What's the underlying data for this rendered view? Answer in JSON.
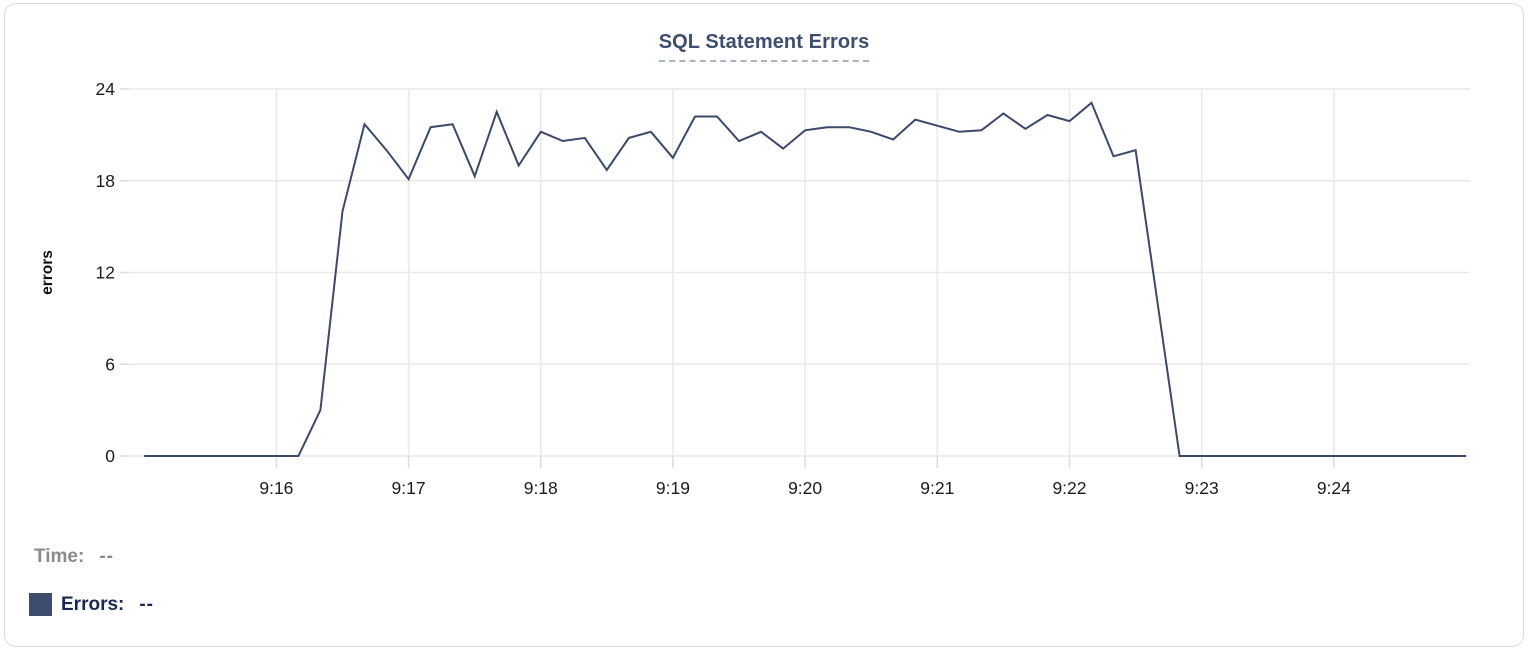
{
  "chart_title": "SQL Statement Errors",
  "chart_data": {
    "type": "line",
    "title": "SQL Statement Errors",
    "xlabel": "",
    "ylabel": "errors",
    "ylim": [
      0,
      24
    ],
    "y_ticks": [
      0,
      6,
      12,
      18,
      24
    ],
    "x_ticks": [
      {
        "label": "9:16",
        "minute": 16
      },
      {
        "label": "9:17",
        "minute": 17
      },
      {
        "label": "9:18",
        "minute": 18
      },
      {
        "label": "9:19",
        "minute": 19
      },
      {
        "label": "9:20",
        "minute": 20
      },
      {
        "label": "9:21",
        "minute": 21
      },
      {
        "label": "9:22",
        "minute": 22
      },
      {
        "label": "9:23",
        "minute": 23
      },
      {
        "label": "9:24",
        "minute": 24
      }
    ],
    "xlim_minutes_after_9": [
      14.885,
      25.03
    ],
    "grid": true,
    "legend_position": "bottom-left",
    "sample_interval_seconds": 10,
    "series": [
      {
        "name": "Errors",
        "color": "#3b4a6a",
        "points": [
          [
            "9:15:00",
            0
          ],
          [
            "9:15:10",
            0
          ],
          [
            "9:15:20",
            0
          ],
          [
            "9:15:30",
            0
          ],
          [
            "9:15:40",
            0
          ],
          [
            "9:15:50",
            0
          ],
          [
            "9:16:00",
            0
          ],
          [
            "9:16:10",
            0
          ],
          [
            "9:16:20",
            3
          ],
          [
            "9:16:30",
            16
          ],
          [
            "9:16:40",
            21.7
          ],
          [
            "9:16:50",
            20
          ],
          [
            "9:17:00",
            18.1
          ],
          [
            "9:17:10",
            21.5
          ],
          [
            "9:17:20",
            21.7
          ],
          [
            "9:17:30",
            18.3
          ],
          [
            "9:17:40",
            22.5
          ],
          [
            "9:17:50",
            19
          ],
          [
            "9:18:00",
            21.2
          ],
          [
            "9:18:10",
            20.6
          ],
          [
            "9:18:20",
            20.8
          ],
          [
            "9:18:30",
            18.7
          ],
          [
            "9:18:40",
            20.8
          ],
          [
            "9:18:50",
            21.2
          ],
          [
            "9:19:00",
            19.5
          ],
          [
            "9:19:10",
            22.2
          ],
          [
            "9:19:20",
            22.2
          ],
          [
            "9:19:30",
            20.6
          ],
          [
            "9:19:40",
            21.2
          ],
          [
            "9:19:50",
            20.1
          ],
          [
            "9:20:00",
            21.3
          ],
          [
            "9:20:10",
            21.5
          ],
          [
            "9:20:20",
            21.5
          ],
          [
            "9:20:30",
            21.2
          ],
          [
            "9:20:40",
            20.7
          ],
          [
            "9:20:50",
            22
          ],
          [
            "9:21:00",
            21.6
          ],
          [
            "9:21:10",
            21.2
          ],
          [
            "9:21:20",
            21.3
          ],
          [
            "9:21:30",
            22.4
          ],
          [
            "9:21:40",
            21.4
          ],
          [
            "9:21:50",
            22.3
          ],
          [
            "9:22:00",
            21.9
          ],
          [
            "9:22:10",
            23.1
          ],
          [
            "9:22:20",
            19.6
          ],
          [
            "9:22:30",
            20
          ],
          [
            "9:22:40",
            10
          ],
          [
            "9:22:50",
            0
          ],
          [
            "9:23:00",
            0
          ],
          [
            "9:23:10",
            0
          ],
          [
            "9:23:20",
            0
          ],
          [
            "9:23:30",
            0
          ],
          [
            "9:23:40",
            0
          ],
          [
            "9:23:50",
            0
          ],
          [
            "9:24:00",
            0
          ],
          [
            "9:24:10",
            0
          ],
          [
            "9:24:20",
            0
          ],
          [
            "9:24:30",
            0
          ],
          [
            "9:24:40",
            0
          ],
          [
            "9:24:50",
            0
          ],
          [
            "9:25:00",
            0
          ]
        ]
      }
    ]
  },
  "legend": {
    "time_label": "Time:",
    "time_value": "--",
    "errors_label": "Errors:",
    "errors_value": "--"
  },
  "colors": {
    "title": "#3e4e6e",
    "title_underline": "#a9b3c8",
    "line": "#3b4a6a",
    "grid": "#e9e9e9",
    "tick_stub": "#dcdcdc",
    "axis_text": "#1c1c1c",
    "axis_label": "#111111",
    "legend_time": "#8b8b8b",
    "legend_errors": "#182a52",
    "swatch": "#3e4d6d",
    "card_border": "#dcdcdc"
  }
}
